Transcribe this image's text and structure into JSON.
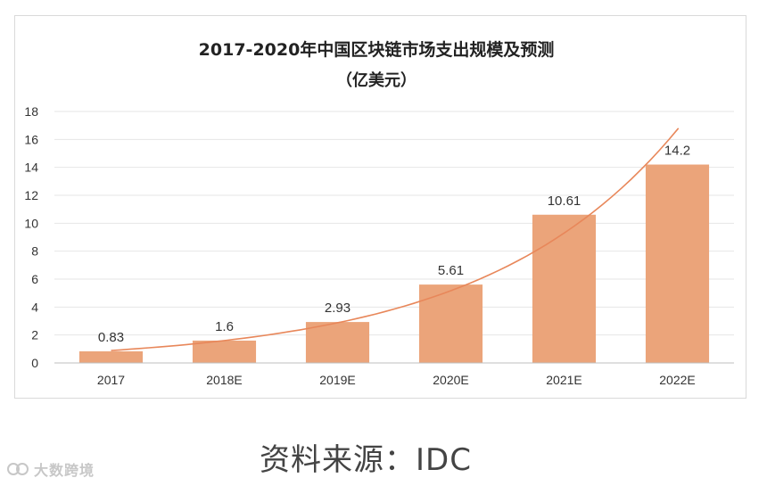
{
  "chart_data": {
    "type": "bar",
    "title": "2017-2020年中国区块链市场支出规模及预测",
    "subtitle": "（亿美元）",
    "categories": [
      "2017",
      "2018E",
      "2019E",
      "2020E",
      "2021E",
      "2022E"
    ],
    "values": [
      0.83,
      1.6,
      2.93,
      5.61,
      10.61,
      14.2
    ],
    "data_labels": [
      "0.83",
      "1.6",
      "2.93",
      "5.61",
      "10.61",
      "14.2"
    ],
    "ylim": [
      0,
      18
    ],
    "yticks": [
      "0",
      "2",
      "4",
      "6",
      "8",
      "10",
      "12",
      "14",
      "16",
      "18"
    ],
    "grid": true,
    "bar_color": "#eba47a",
    "trendline": {
      "type": "exponential",
      "color": "#e8875a",
      "end_value": 16.8
    },
    "xlabel": "",
    "ylabel": ""
  },
  "source": {
    "text": "资料来源：IDC"
  },
  "watermark": {
    "text": "大数跨境"
  },
  "colors": {
    "grid": "#e6e6e6",
    "axis": "#bfbfbf",
    "text": "#333333"
  }
}
